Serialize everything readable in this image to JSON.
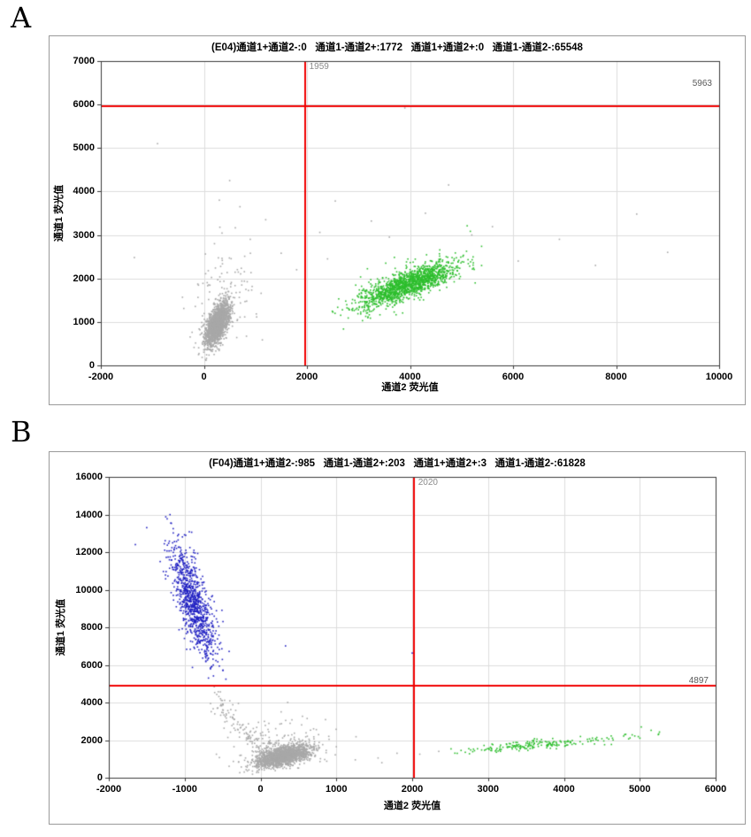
{
  "panels": [
    {
      "label": "A"
    },
    {
      "label": "B"
    }
  ],
  "colors": {
    "threshold_line": "#f00000",
    "negative_dots": "#a8a8a8",
    "channel1_positive_dots": "#2121c2",
    "channel2_positive_dots": "#2dbe2d",
    "grid": "#dcdcdc",
    "axis": "#3a3a3a"
  },
  "chart_data": [
    {
      "type": "scatter",
      "panel": "A",
      "title": "(E04)通道1+通道2-:0   通道1-通道2+:1772   通道1+通道2+:0   通道1-通道2-:65548",
      "xlabel": "通道2 荧光值",
      "ylabel": "通道1 荧光值",
      "xlim": [
        -2000,
        10000
      ],
      "ylim": [
        0,
        7000
      ],
      "xticks": [
        -2000,
        0,
        2000,
        4000,
        6000,
        8000,
        10000
      ],
      "yticks": [
        0,
        1000,
        2000,
        3000,
        4000,
        5000,
        6000,
        7000
      ],
      "grid": true,
      "legend": "none",
      "threshold": {
        "x": 1959,
        "y": 5963
      },
      "clusters": [
        {
          "name": "double-negative-core",
          "color_key": "negative_dots",
          "cx": 265,
          "cy": 950,
          "sx": 115,
          "sy": 240,
          "corr": 0.6,
          "n": 1900
        },
        {
          "name": "double-negative-halo",
          "color_key": "negative_dots",
          "cx": 330,
          "cy": 1500,
          "sx": 330,
          "sy": 620,
          "corr": 0.35,
          "n": 150,
          "xmax": 1850,
          "ymin": 150
        },
        {
          "name": "channel2-positive-core",
          "color_key": "channel2_positive_dots",
          "cx": 3950,
          "cy": 1850,
          "sx": 470,
          "sy": 260,
          "corr": 0.8,
          "n": 1500,
          "xmin": 2450
        },
        {
          "name": "channel2-positive-halo",
          "color_key": "channel2_positive_dots",
          "cx": 3950,
          "cy": 1950,
          "sx": 660,
          "sy": 430,
          "corr": 0.6,
          "n": 85,
          "xmin": 2450
        }
      ],
      "outlier_groups": [
        {
          "color_key": "negative_dots",
          "points": [
            [
              -900,
              5100
            ],
            [
              3900,
              5920
            ],
            [
              8400,
              3480
            ],
            [
              2550,
              3780
            ],
            [
              4750,
              4150
            ],
            [
              700,
              3650
            ],
            [
              2250,
              3060
            ],
            [
              5600,
              3190
            ],
            [
              1500,
              2580
            ],
            [
              6100,
              2400
            ],
            [
              3250,
              3320
            ],
            [
              -1350,
              2480
            ],
            [
              900,
              2900
            ],
            [
              1800,
              2200
            ],
            [
              6900,
              2900
            ],
            [
              7600,
              2300
            ],
            [
              2400,
              2450
            ],
            [
              5200,
              3000
            ],
            [
              4300,
              3500
            ],
            [
              3600,
              2950
            ],
            [
              1200,
              3350
            ],
            [
              300,
              3800
            ],
            [
              9000,
              2600
            ],
            [
              500,
              4250
            ]
          ]
        }
      ]
    },
    {
      "type": "scatter",
      "panel": "B",
      "title": "(F04)通道1+通道2-:985   通道1-通道2+:203   通道1+通道2+:3   通道1-通道2-:61828",
      "xlabel": "通道2 荧光值",
      "ylabel": "通道1 荧光值",
      "xlim": [
        -2000,
        6000
      ],
      "ylim": [
        0,
        16000
      ],
      "xticks": [
        -2000,
        -1000,
        0,
        1000,
        2000,
        3000,
        4000,
        5000,
        6000
      ],
      "yticks": [
        0,
        2000,
        4000,
        6000,
        8000,
        10000,
        12000,
        14000,
        16000
      ],
      "grid": true,
      "legend": "none",
      "threshold": {
        "x": 2020,
        "y": 4897
      },
      "clusters": [
        {
          "name": "channel1-positive",
          "color_key": "channel1_positive_dots",
          "cx": -880,
          "cy": 9300,
          "sx": 150,
          "sy": 1550,
          "corr": -0.72,
          "n": 950,
          "ymin": 4950,
          "xmax": -350
        },
        {
          "name": "double-negative-core",
          "color_key": "negative_dots",
          "cx": 300,
          "cy": 1150,
          "sx": 185,
          "sy": 300,
          "corr": 0.55,
          "n": 1700,
          "ymin": 150
        },
        {
          "name": "double-negative-halo",
          "color_key": "negative_dots",
          "cx": 250,
          "cy": 1800,
          "sx": 330,
          "sy": 700,
          "corr": 0.2,
          "n": 130,
          "ymin": 200
        },
        {
          "name": "rain-trail",
          "color_key": "negative_dots",
          "trail": [
            [
              -620,
              4900
            ],
            [
              -430,
              3400
            ],
            [
              -260,
              2500
            ],
            [
              -80,
              1800
            ],
            [
              150,
              1400
            ]
          ],
          "jx": 80,
          "jy": 200,
          "n": 120
        },
        {
          "name": "channel2-positive",
          "color_key": "channel2_positive_dots",
          "cx": 3650,
          "cy": 1750,
          "sx": 560,
          "sy": 220,
          "corr": 0.82,
          "n": 200,
          "xmin": 2450
        }
      ],
      "outlier_groups": [
        {
          "color_key": "negative_dots",
          "points": [
            [
              1550,
              1050
            ],
            [
              1800,
              1300
            ],
            [
              2100,
              1250
            ],
            [
              1250,
              950
            ],
            [
              700,
              2600
            ],
            [
              900,
              2200
            ],
            [
              2350,
              1400
            ],
            [
              1000,
              1650
            ],
            [
              1600,
              800
            ]
          ]
        },
        {
          "color_key": "channel1_positive_dots",
          "points": [
            [
              330,
              7010
            ],
            [
              -1500,
              13300
            ],
            [
              -1650,
              12400
            ],
            [
              2000,
              6630
            ]
          ]
        },
        {
          "color_key": "channel2_positive_dots",
          "points": [
            [
              5020,
              2700
            ],
            [
              5150,
              2520
            ],
            [
              5260,
              2430
            ],
            [
              4900,
              2280
            ]
          ]
        }
      ]
    }
  ]
}
